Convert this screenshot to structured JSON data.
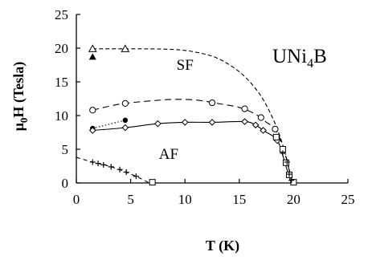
{
  "chart_data": {
    "type": "line",
    "title": "UNi",
    "title_subscript": "4",
    "title_suffix": "B",
    "xlabel": "T (K)",
    "ylabel_main": "μ",
    "ylabel_sub": "0",
    "ylabel_rest": "H (Tesla)",
    "xlim": [
      0,
      25
    ],
    "ylim": [
      0,
      25
    ],
    "xticks": [
      0,
      5,
      10,
      15,
      20,
      25
    ],
    "yticks": [
      0,
      5,
      10,
      15,
      20,
      25
    ],
    "grid": false,
    "legend": "none",
    "region_labels": [
      {
        "text": "SF",
        "x": 10,
        "y": 16.8
      },
      {
        "text": "AF",
        "x": 8.5,
        "y": 3.6
      }
    ],
    "series": [
      {
        "marker": "triangle-open",
        "line": "dashed-fine",
        "points": [
          [
            1.5,
            19.9
          ],
          [
            4.5,
            19.9
          ]
        ],
        "curve": [
          [
            1.5,
            19.9
          ],
          [
            6,
            19.9
          ],
          [
            9,
            19.8
          ],
          [
            11,
            19.4
          ],
          [
            13,
            18.5
          ],
          [
            15,
            16.5
          ],
          [
            16.5,
            14.0
          ],
          [
            17.5,
            11.5
          ],
          [
            18.5,
            8.0
          ],
          [
            19.3,
            4.0
          ],
          [
            19.8,
            0.5
          ]
        ]
      },
      {
        "marker": "triangle-filled",
        "points": [
          [
            1.5,
            18.7
          ]
        ]
      },
      {
        "marker": "circle-open",
        "line": "dashed-long",
        "points": [
          [
            1.5,
            10.8
          ],
          [
            4.5,
            11.8
          ],
          [
            12.5,
            11.9
          ],
          [
            15.5,
            11.0
          ],
          [
            17,
            9.7
          ],
          [
            18.3,
            8.0
          ]
        ],
        "curve": [
          [
            1.5,
            10.8
          ],
          [
            4,
            11.7
          ],
          [
            7,
            12.2
          ],
          [
            9,
            12.4
          ],
          [
            11,
            12.3
          ],
          [
            13,
            11.8
          ],
          [
            15,
            11.2
          ],
          [
            16.5,
            10.2
          ],
          [
            17.5,
            9.0
          ],
          [
            18.3,
            8.0
          ],
          [
            19.0,
            5.5
          ],
          [
            19.5,
            2.5
          ],
          [
            19.8,
            0.5
          ]
        ]
      },
      {
        "marker": "circle-filled",
        "line": "dotted",
        "points": [
          [
            1.5,
            8.1
          ],
          [
            4.5,
            9.3
          ]
        ],
        "curve": [
          [
            1.5,
            8.1
          ],
          [
            4.5,
            9.3
          ]
        ]
      },
      {
        "marker": "diamond-open",
        "line": "solid",
        "points": [
          [
            1.5,
            7.8
          ],
          [
            4.5,
            8.2
          ],
          [
            7.5,
            8.8
          ],
          [
            10,
            9.0
          ],
          [
            12.5,
            9.0
          ],
          [
            15.5,
            9.1
          ],
          [
            16.5,
            8.6
          ],
          [
            17.2,
            7.8
          ],
          [
            18.5,
            6.3
          ]
        ],
        "curve": [
          [
            1.5,
            7.8
          ],
          [
            4.5,
            8.2
          ],
          [
            7.5,
            8.8
          ],
          [
            10,
            9.0
          ],
          [
            12.5,
            9.0
          ],
          [
            15.5,
            9.1
          ],
          [
            16.5,
            8.6
          ],
          [
            17.2,
            7.8
          ],
          [
            18.5,
            6.3
          ],
          [
            19.2,
            3.0
          ],
          [
            19.7,
            0.3
          ]
        ]
      },
      {
        "marker": "square-open",
        "points": [
          [
            7,
            0.1
          ],
          [
            18.4,
            6.8
          ],
          [
            19.0,
            5.0
          ],
          [
            19.3,
            3.0
          ],
          [
            19.6,
            1.2
          ],
          [
            20.0,
            0.1
          ]
        ]
      },
      {
        "marker": "plus",
        "line": "dashed-short",
        "points": [
          [
            1.5,
            3.1
          ],
          [
            2.0,
            2.9
          ],
          [
            2.5,
            2.7
          ],
          [
            3.2,
            2.4
          ],
          [
            4.0,
            2.0
          ],
          [
            4.6,
            1.6
          ],
          [
            5.5,
            1.0
          ],
          [
            19.0,
            4.4
          ],
          [
            19.4,
            3.1
          ],
          [
            19.6,
            1.3
          ],
          [
            19.8,
            0.4
          ]
        ],
        "curve": [
          [
            0,
            3.8
          ],
          [
            1.5,
            3.1
          ],
          [
            3.0,
            2.5
          ],
          [
            4.6,
            1.6
          ],
          [
            6.0,
            0.6
          ],
          [
            6.7,
            0.0
          ]
        ]
      }
    ]
  }
}
